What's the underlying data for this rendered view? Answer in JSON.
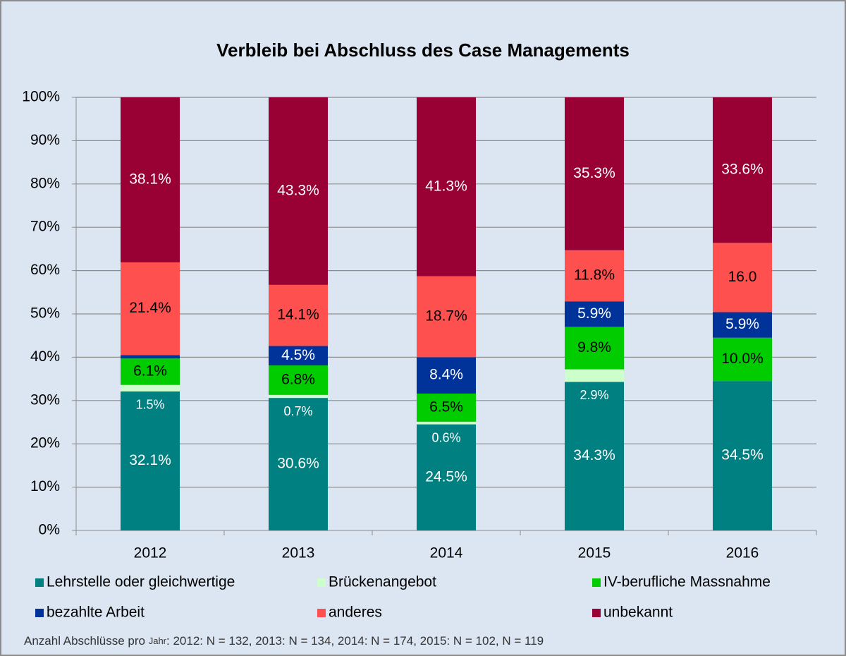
{
  "chart_data": {
    "type": "stacked_bar",
    "title": "Verbleib bei Abschluss des Case Managements",
    "categories": [
      "2012",
      "2013",
      "2014",
      "2015",
      "2016"
    ],
    "series": [
      {
        "name": "Lehrstelle oder gleichwertige",
        "color": "#008080",
        "values": [
          32.1,
          30.6,
          24.5,
          34.3,
          34.5
        ],
        "value_labels": [
          "32.1%",
          "30.6%",
          "24.5%",
          "34.3%",
          "34.5%"
        ]
      },
      {
        "name": "Brückenangebot",
        "color": "#ccffcc",
        "values": [
          1.5,
          0.7,
          0.6,
          2.9,
          null
        ],
        "value_labels": [
          "1.5%",
          "0.7%",
          "0.6%",
          "2.9%",
          null
        ]
      },
      {
        "name": "IV-berufliche Massnahme",
        "color": "#00cc00",
        "values": [
          6.1,
          6.8,
          6.5,
          9.8,
          10.0
        ],
        "value_labels": [
          "6.1%",
          "6.8%",
          "6.5%",
          "9.8%",
          "10.0%"
        ]
      },
      {
        "name": "bezahlte Arbeit",
        "color": "#003399",
        "values": [
          0.8,
          4.5,
          8.4,
          5.9,
          5.9
        ],
        "value_labels": [
          "0.8%",
          "4.5%",
          "8.4%",
          "5.9%",
          "5.9%"
        ]
      },
      {
        "name": "anderes",
        "color": "#ff5050",
        "values": [
          21.4,
          14.1,
          18.7,
          11.8,
          16.0
        ],
        "value_labels": [
          "21.4%",
          "14.1%",
          "18.7%",
          "11.8%",
          "16.0"
        ]
      },
      {
        "name": "unbekannt",
        "color": "#990033",
        "values": [
          38.1,
          43.3,
          41.3,
          35.3,
          33.6
        ],
        "value_labels": [
          "38.1%",
          "43.3%",
          "41.3%",
          "35.3%",
          "33.6%"
        ]
      }
    ],
    "ylim": [
      0,
      100
    ],
    "yticks": [
      {
        "value": 0,
        "label": "0%"
      },
      {
        "value": 10,
        "label": "10%"
      },
      {
        "value": 20,
        "label": "20%"
      },
      {
        "value": 30,
        "label": "30%"
      },
      {
        "value": 40,
        "label": "40%"
      },
      {
        "value": 50,
        "label": "50%"
      },
      {
        "value": 60,
        "label": "60%"
      },
      {
        "value": 70,
        "label": "70%"
      },
      {
        "value": 80,
        "label": "80%"
      },
      {
        "value": 90,
        "label": "90%"
      },
      {
        "value": 100,
        "label": "100%"
      }
    ],
    "grid": true,
    "legend": "bottom",
    "note": [
      "Anzahl Abschlüsse pro ",
      "Jahr",
      ": 2012: N = 132, 2013: N = 134, 2014: N = 174, 2015: N = 102, N = 119"
    ]
  }
}
